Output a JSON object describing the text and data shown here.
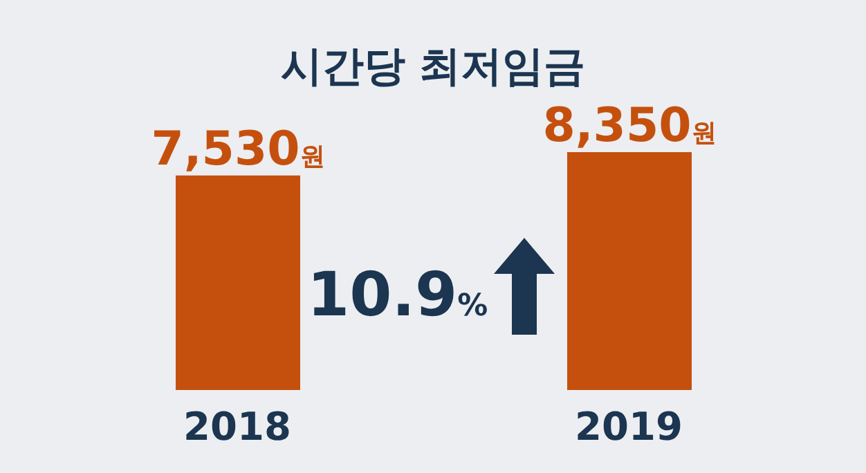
{
  "chart_data": {
    "type": "bar",
    "title": "시간당 최저임금",
    "categories": [
      "2018",
      "2019"
    ],
    "values": [
      7530,
      8350
    ],
    "color": "#c5500e",
    "value_labels": [
      "7,530원",
      "8,350원"
    ],
    "annotations": [
      "10.9%"
    ]
  }
}
